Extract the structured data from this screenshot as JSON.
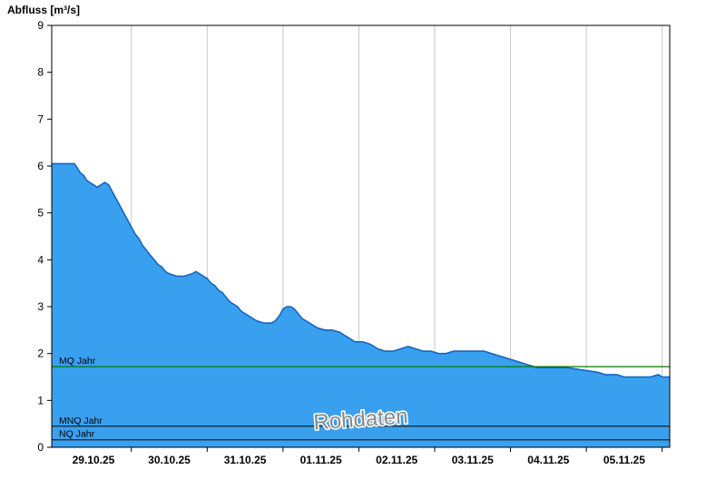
{
  "chart_data": {
    "type": "area",
    "title": "Abfluss [m³/s]",
    "xlabel": "",
    "ylabel": "Abfluss [m³/s]",
    "ylim": [
      0,
      9
    ],
    "y_ticks": [
      0,
      1,
      2,
      3,
      4,
      5,
      6,
      7,
      8,
      9
    ],
    "x_range_days": [
      0,
      8.15
    ],
    "x_tick_labels": [
      "29.10.25",
      "30.10.25",
      "31.10.25",
      "01.11.25",
      "02.11.25",
      "03.11.25",
      "04.11.25",
      "05.11.25"
    ],
    "x_label_days": [
      0.55,
      1.55,
      2.55,
      3.55,
      4.55,
      5.55,
      6.55,
      7.55
    ],
    "gridlines_days": [
      1.05,
      2.05,
      3.05,
      4.05,
      5.05,
      6.05,
      7.05,
      8.05
    ],
    "grid": "vertical-on",
    "legend": "none",
    "watermark": "Rohdaten",
    "reference_lines": [
      {
        "label": "MQ Jahr",
        "value": 1.72,
        "color": "#007a00"
      },
      {
        "label": "MNQ Jahr",
        "value": 0.45,
        "color": "#202020"
      },
      {
        "label": "NQ Jahr",
        "value": 0.16,
        "color": "#202020"
      }
    ],
    "colors": {
      "area_fill": "#39a0f0",
      "area_stroke": "#1565c0",
      "grid": "#c8c8c8",
      "axis": "#000000",
      "tick_text": "#000000",
      "watermark": "#8a8a8a",
      "watermark_halo": "#ffffff"
    },
    "series": [
      {
        "name": "Abfluss",
        "points": [
          [
            0.0,
            6.05
          ],
          [
            0.3,
            6.05
          ],
          [
            0.34,
            5.95
          ],
          [
            0.38,
            5.85
          ],
          [
            0.42,
            5.8
          ],
          [
            0.46,
            5.7
          ],
          [
            0.5,
            5.65
          ],
          [
            0.55,
            5.6
          ],
          [
            0.6,
            5.55
          ],
          [
            0.65,
            5.6
          ],
          [
            0.7,
            5.65
          ],
          [
            0.75,
            5.6
          ],
          [
            0.8,
            5.45
          ],
          [
            0.85,
            5.3
          ],
          [
            0.9,
            5.15
          ],
          [
            0.95,
            5.0
          ],
          [
            1.0,
            4.85
          ],
          [
            1.05,
            4.7
          ],
          [
            1.1,
            4.55
          ],
          [
            1.15,
            4.45
          ],
          [
            1.2,
            4.3
          ],
          [
            1.25,
            4.2
          ],
          [
            1.3,
            4.1
          ],
          [
            1.35,
            4.0
          ],
          [
            1.4,
            3.9
          ],
          [
            1.45,
            3.85
          ],
          [
            1.5,
            3.75
          ],
          [
            1.55,
            3.7
          ],
          [
            1.65,
            3.65
          ],
          [
            1.75,
            3.65
          ],
          [
            1.85,
            3.7
          ],
          [
            1.9,
            3.75
          ],
          [
            1.95,
            3.7
          ],
          [
            2.0,
            3.65
          ],
          [
            2.05,
            3.6
          ],
          [
            2.1,
            3.5
          ],
          [
            2.15,
            3.45
          ],
          [
            2.2,
            3.35
          ],
          [
            2.25,
            3.3
          ],
          [
            2.3,
            3.2
          ],
          [
            2.35,
            3.1
          ],
          [
            2.4,
            3.05
          ],
          [
            2.45,
            3.0
          ],
          [
            2.5,
            2.9
          ],
          [
            2.55,
            2.85
          ],
          [
            2.6,
            2.8
          ],
          [
            2.65,
            2.75
          ],
          [
            2.7,
            2.7
          ],
          [
            2.8,
            2.65
          ],
          [
            2.9,
            2.65
          ],
          [
            2.95,
            2.7
          ],
          [
            3.0,
            2.8
          ],
          [
            3.05,
            2.95
          ],
          [
            3.1,
            3.0
          ],
          [
            3.15,
            3.0
          ],
          [
            3.2,
            2.95
          ],
          [
            3.25,
            2.85
          ],
          [
            3.3,
            2.75
          ],
          [
            3.35,
            2.7
          ],
          [
            3.4,
            2.65
          ],
          [
            3.45,
            2.6
          ],
          [
            3.5,
            2.55
          ],
          [
            3.6,
            2.5
          ],
          [
            3.7,
            2.5
          ],
          [
            3.8,
            2.45
          ],
          [
            3.85,
            2.4
          ],
          [
            3.9,
            2.35
          ],
          [
            3.95,
            2.3
          ],
          [
            4.0,
            2.25
          ],
          [
            4.1,
            2.25
          ],
          [
            4.2,
            2.2
          ],
          [
            4.3,
            2.1
          ],
          [
            4.4,
            2.05
          ],
          [
            4.5,
            2.05
          ],
          [
            4.6,
            2.1
          ],
          [
            4.7,
            2.15
          ],
          [
            4.8,
            2.1
          ],
          [
            4.9,
            2.05
          ],
          [
            5.0,
            2.05
          ],
          [
            5.1,
            2.0
          ],
          [
            5.2,
            2.0
          ],
          [
            5.3,
            2.05
          ],
          [
            5.5,
            2.05
          ],
          [
            5.7,
            2.05
          ],
          [
            5.8,
            2.0
          ],
          [
            5.9,
            1.95
          ],
          [
            6.0,
            1.9
          ],
          [
            6.1,
            1.85
          ],
          [
            6.2,
            1.8
          ],
          [
            6.3,
            1.75
          ],
          [
            6.4,
            1.7
          ],
          [
            6.6,
            1.7
          ],
          [
            6.8,
            1.7
          ],
          [
            7.0,
            1.65
          ],
          [
            7.2,
            1.6
          ],
          [
            7.3,
            1.55
          ],
          [
            7.45,
            1.55
          ],
          [
            7.55,
            1.5
          ],
          [
            7.7,
            1.5
          ],
          [
            7.8,
            1.5
          ],
          [
            7.9,
            1.5
          ],
          [
            8.0,
            1.55
          ],
          [
            8.05,
            1.5
          ],
          [
            8.15,
            1.5
          ]
        ]
      }
    ]
  }
}
